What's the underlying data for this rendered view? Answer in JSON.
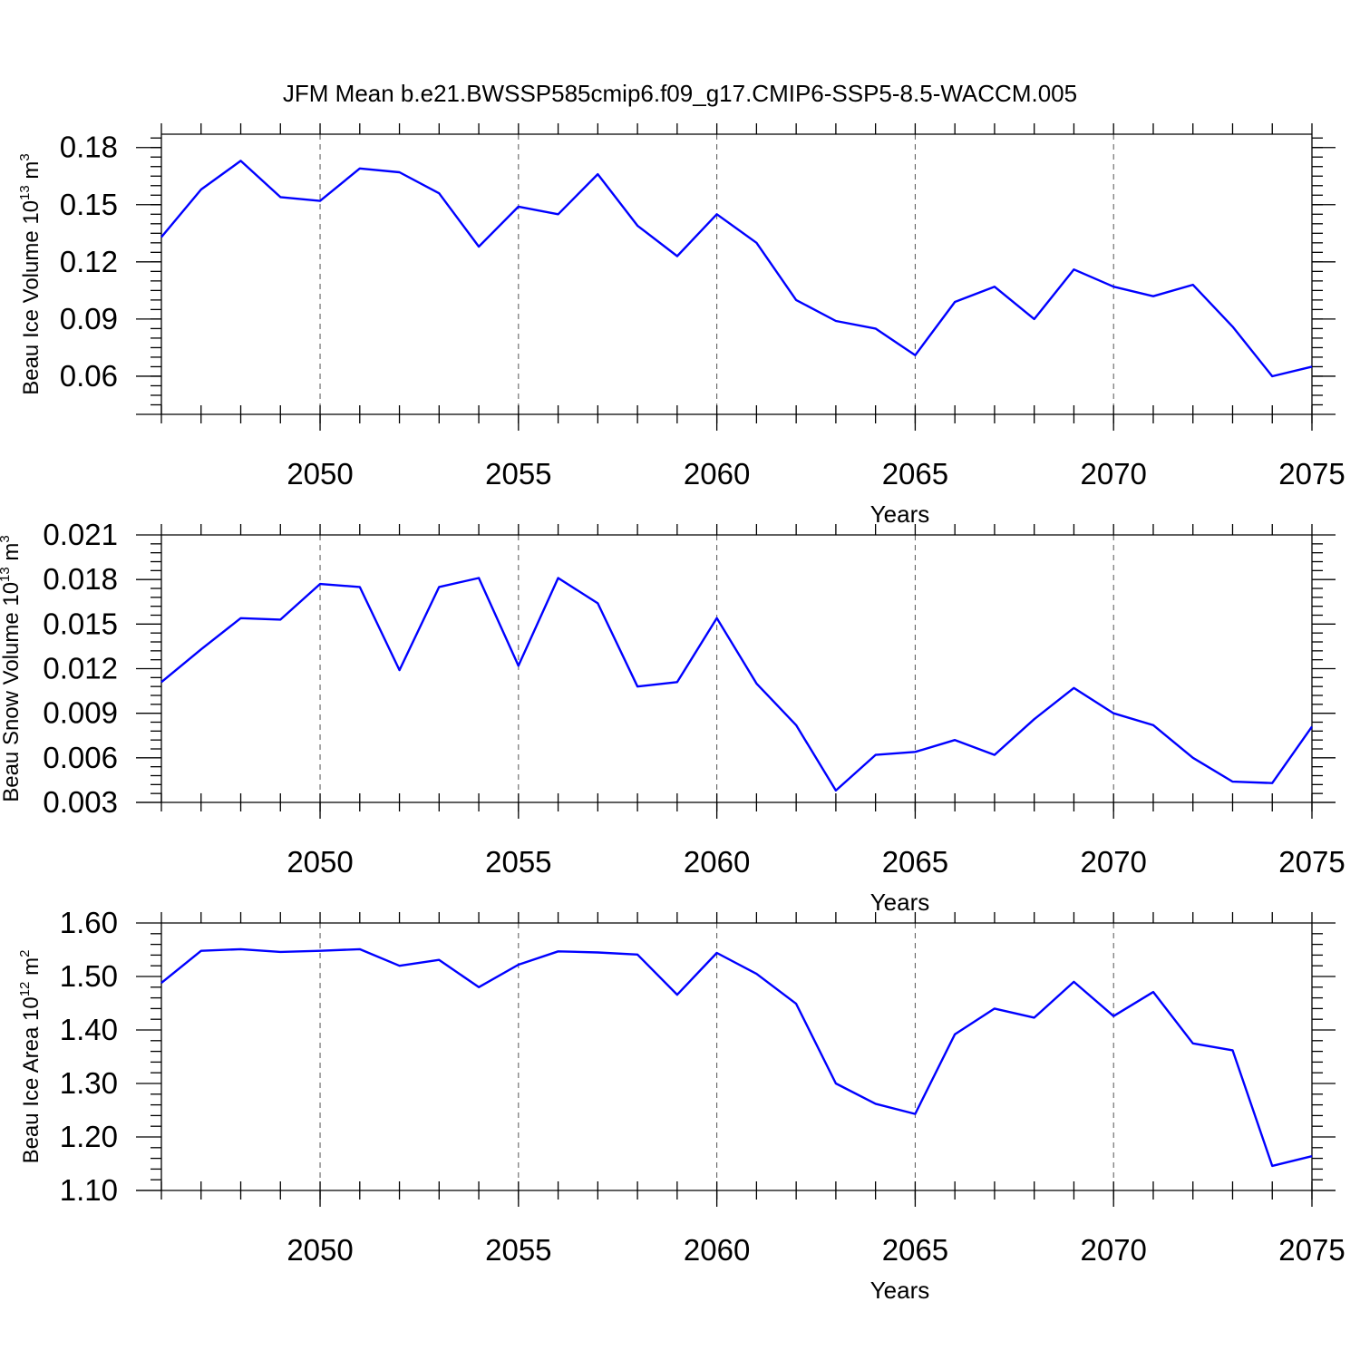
{
  "title": "JFM Mean b.e21.BWSSP585cmip6.f09_g17.CMIP6-SSP5-8.5-WACCM.005",
  "colors": {
    "series": "#0000ff",
    "axis": "#000000",
    "grid": "#555555"
  },
  "chart_data": [
    {
      "type": "line",
      "xlabel": "Years",
      "ylabel": {
        "text": "Beau Ice Volume 10",
        "exp": "13",
        "unit": " m",
        "unit_exp": "3"
      },
      "xlim": [
        2046,
        2075
      ],
      "ylim": [
        0.04,
        0.187
      ],
      "xticks": [
        2050,
        2055,
        2060,
        2065,
        2070,
        2075
      ],
      "xticks_minor": [
        2046,
        2047,
        2048,
        2049,
        2050,
        2051,
        2052,
        2053,
        2054,
        2055,
        2056,
        2057,
        2058,
        2059,
        2060,
        2061,
        2062,
        2063,
        2064,
        2065,
        2066,
        2067,
        2068,
        2069,
        2070,
        2071,
        2072,
        2073,
        2074,
        2075
      ],
      "yticks": [
        0.06,
        0.09,
        0.12,
        0.15,
        0.18
      ],
      "ytick_labels": [
        "0.06",
        "0.09",
        "0.12",
        "0.15",
        "0.18"
      ],
      "yticks_minor": [
        0.045,
        0.05,
        0.055,
        0.06,
        0.065,
        0.07,
        0.075,
        0.08,
        0.085,
        0.09,
        0.095,
        0.1,
        0.105,
        0.11,
        0.115,
        0.12,
        0.125,
        0.13,
        0.135,
        0.14,
        0.145,
        0.15,
        0.155,
        0.16,
        0.165,
        0.17,
        0.175,
        0.18,
        0.185
      ],
      "grid_x": true,
      "x": [
        2046,
        2047,
        2048,
        2049,
        2050,
        2051,
        2052,
        2053,
        2054,
        2055,
        2056,
        2057,
        2058,
        2059,
        2060,
        2061,
        2062,
        2063,
        2064,
        2065,
        2066,
        2067,
        2068,
        2069,
        2070,
        2071,
        2072,
        2073,
        2074,
        2075
      ],
      "series": [
        {
          "name": "Beau Ice Volume",
          "values": [
            0.133,
            0.158,
            0.173,
            0.154,
            0.152,
            0.169,
            0.167,
            0.156,
            0.128,
            0.149,
            0.145,
            0.166,
            0.139,
            0.123,
            0.145,
            0.13,
            0.1,
            0.089,
            0.085,
            0.071,
            0.099,
            0.107,
            0.09,
            0.116,
            0.107,
            0.102,
            0.108,
            0.086,
            0.06,
            0.065
          ]
        }
      ]
    },
    {
      "type": "line",
      "xlabel": "Years",
      "ylabel": {
        "text": "Beau Snow Volume 10",
        "exp": "13",
        "unit": " m",
        "unit_exp": "3"
      },
      "xlim": [
        2046,
        2075
      ],
      "ylim": [
        0.003,
        0.021
      ],
      "xticks": [
        2050,
        2055,
        2060,
        2065,
        2070,
        2075
      ],
      "xticks_minor": [
        2046,
        2047,
        2048,
        2049,
        2050,
        2051,
        2052,
        2053,
        2054,
        2055,
        2056,
        2057,
        2058,
        2059,
        2060,
        2061,
        2062,
        2063,
        2064,
        2065,
        2066,
        2067,
        2068,
        2069,
        2070,
        2071,
        2072,
        2073,
        2074,
        2075
      ],
      "yticks": [
        0.003,
        0.006,
        0.009,
        0.012,
        0.015,
        0.018,
        0.021
      ],
      "ytick_labels": [
        "0.003",
        "0.006",
        "0.009",
        "0.012",
        "0.015",
        "0.018",
        "0.021"
      ],
      "yticks_minor": [
        0.0036,
        0.0042,
        0.0048,
        0.0054,
        0.0066,
        0.0072,
        0.0078,
        0.0084,
        0.0096,
        0.0102,
        0.0108,
        0.0114,
        0.0126,
        0.0132,
        0.0138,
        0.0144,
        0.0156,
        0.0162,
        0.0168,
        0.0174,
        0.0186,
        0.0192,
        0.0198,
        0.0204
      ],
      "grid_x": true,
      "x": [
        2046,
        2047,
        2048,
        2049,
        2050,
        2051,
        2052,
        2053,
        2054,
        2055,
        2056,
        2057,
        2058,
        2059,
        2060,
        2061,
        2062,
        2063,
        2064,
        2065,
        2066,
        2067,
        2068,
        2069,
        2070,
        2071,
        2072,
        2073,
        2074,
        2075
      ],
      "series": [
        {
          "name": "Beau Snow Volume",
          "values": [
            0.0111,
            0.0133,
            0.0154,
            0.0153,
            0.0177,
            0.0175,
            0.0119,
            0.0175,
            0.0181,
            0.0122,
            0.0181,
            0.0164,
            0.0108,
            0.0111,
            0.0154,
            0.011,
            0.0082,
            0.0038,
            0.0062,
            0.0064,
            0.0072,
            0.0062,
            0.0086,
            0.0107,
            0.009,
            0.0082,
            0.006,
            0.0044,
            0.0043,
            0.0081
          ]
        }
      ]
    },
    {
      "type": "line",
      "xlabel": "Years",
      "ylabel": {
        "text": "Beau Ice Area 10",
        "exp": "12",
        "unit": " m",
        "unit_exp": "2"
      },
      "xlim": [
        2046,
        2075
      ],
      "ylim": [
        1.1,
        1.6
      ],
      "xticks": [
        2050,
        2055,
        2060,
        2065,
        2070,
        2075
      ],
      "xticks_minor": [
        2046,
        2047,
        2048,
        2049,
        2050,
        2051,
        2052,
        2053,
        2054,
        2055,
        2056,
        2057,
        2058,
        2059,
        2060,
        2061,
        2062,
        2063,
        2064,
        2065,
        2066,
        2067,
        2068,
        2069,
        2070,
        2071,
        2072,
        2073,
        2074,
        2075
      ],
      "yticks": [
        1.1,
        1.2,
        1.3,
        1.4,
        1.5,
        1.6
      ],
      "ytick_labels": [
        "1.10",
        "1.20",
        "1.30",
        "1.40",
        "1.50",
        "1.60"
      ],
      "yticks_minor": [
        1.12,
        1.14,
        1.16,
        1.18,
        1.22,
        1.24,
        1.26,
        1.28,
        1.32,
        1.34,
        1.36,
        1.38,
        1.42,
        1.44,
        1.46,
        1.48,
        1.52,
        1.54,
        1.56,
        1.58
      ],
      "grid_x": true,
      "x": [
        2046,
        2047,
        2048,
        2049,
        2050,
        2051,
        2052,
        2053,
        2054,
        2055,
        2056,
        2057,
        2058,
        2059,
        2060,
        2061,
        2062,
        2063,
        2064,
        2065,
        2066,
        2067,
        2068,
        2069,
        2070,
        2071,
        2072,
        2073,
        2074,
        2075
      ],
      "series": [
        {
          "name": "Beau Ice Area",
          "values": [
            1.488,
            1.548,
            1.551,
            1.546,
            1.548,
            1.551,
            1.52,
            1.531,
            1.48,
            1.522,
            1.547,
            1.545,
            1.541,
            1.466,
            1.544,
            1.505,
            1.449,
            1.3,
            1.262,
            1.243,
            1.392,
            1.44,
            1.423,
            1.49,
            1.426,
            1.471,
            1.375,
            1.362,
            1.146,
            1.164
          ]
        }
      ]
    }
  ]
}
